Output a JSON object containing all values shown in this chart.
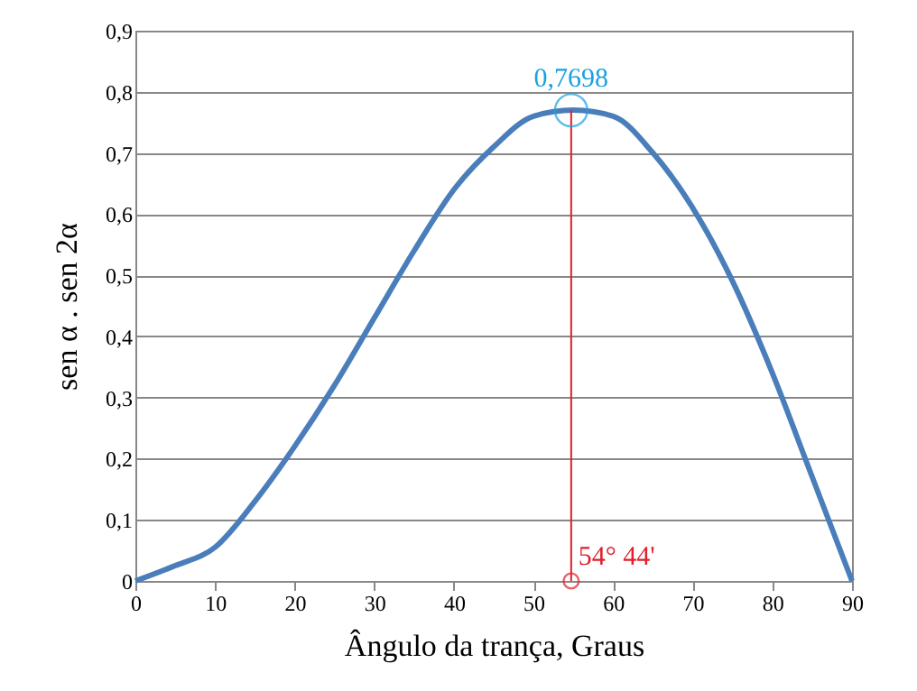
{
  "chart_data": {
    "type": "line",
    "xlabel": "Ângulo da trança, Graus",
    "ylabel": "sen α . sen 2α",
    "series": [
      {
        "color": "#4a7ebb",
        "x": [
          0,
          5,
          10,
          15,
          20,
          25,
          30,
          35,
          40,
          45,
          50,
          55,
          60,
          65,
          70,
          75,
          80,
          85,
          90
        ],
        "values": [
          0,
          0.025,
          0.055,
          0.13,
          0.22,
          0.32,
          0.43,
          0.54,
          0.64,
          0.71,
          0.76,
          0.77,
          0.76,
          0.7,
          0.61,
          0.49,
          0.34,
          0.17,
          0
        ]
      },
      {
        "type": "line",
        "color": "#e0202c",
        "x": [
          54.73,
          54.73
        ],
        "values": [
          0,
          0.7698
        ]
      },
      {
        "type": "scatter",
        "marker": "circle",
        "color": "#1ca0e0",
        "x": [
          54.73
        ],
        "values": [
          0.7698
        ]
      },
      {
        "type": "scatter",
        "marker": "circle",
        "color": "#e0202c",
        "x": [
          54.73
        ],
        "values": [
          0
        ]
      }
    ],
    "annotations": [
      {
        "text": "0,7698",
        "x": 54.73,
        "y": 0.7698
      },
      {
        "text": "54° 44'",
        "x": 54.73,
        "y": 0
      }
    ],
    "xlim": [
      0,
      90
    ],
    "xticks": [
      0,
      10,
      20,
      30,
      40,
      50,
      60,
      70,
      80,
      90
    ],
    "ylim": [
      0,
      0.9
    ],
    "yticks": [
      0,
      {
        "value": 0.1,
        "label": "0,1"
      },
      {
        "value": 0.2,
        "label": "0,2"
      },
      {
        "value": 0.3,
        "label": "0,3"
      },
      {
        "value": 0.4,
        "label": "0,4"
      },
      {
        "value": 0.5,
        "label": "0,5"
      },
      {
        "value": 0.6,
        "label": "0,6"
      },
      {
        "value": 0.7,
        "label": "0,7"
      },
      {
        "value": 0.8,
        "label": "0,8"
      },
      {
        "value": 0.9,
        "label": "0,9"
      }
    ],
    "grid": "y"
  }
}
